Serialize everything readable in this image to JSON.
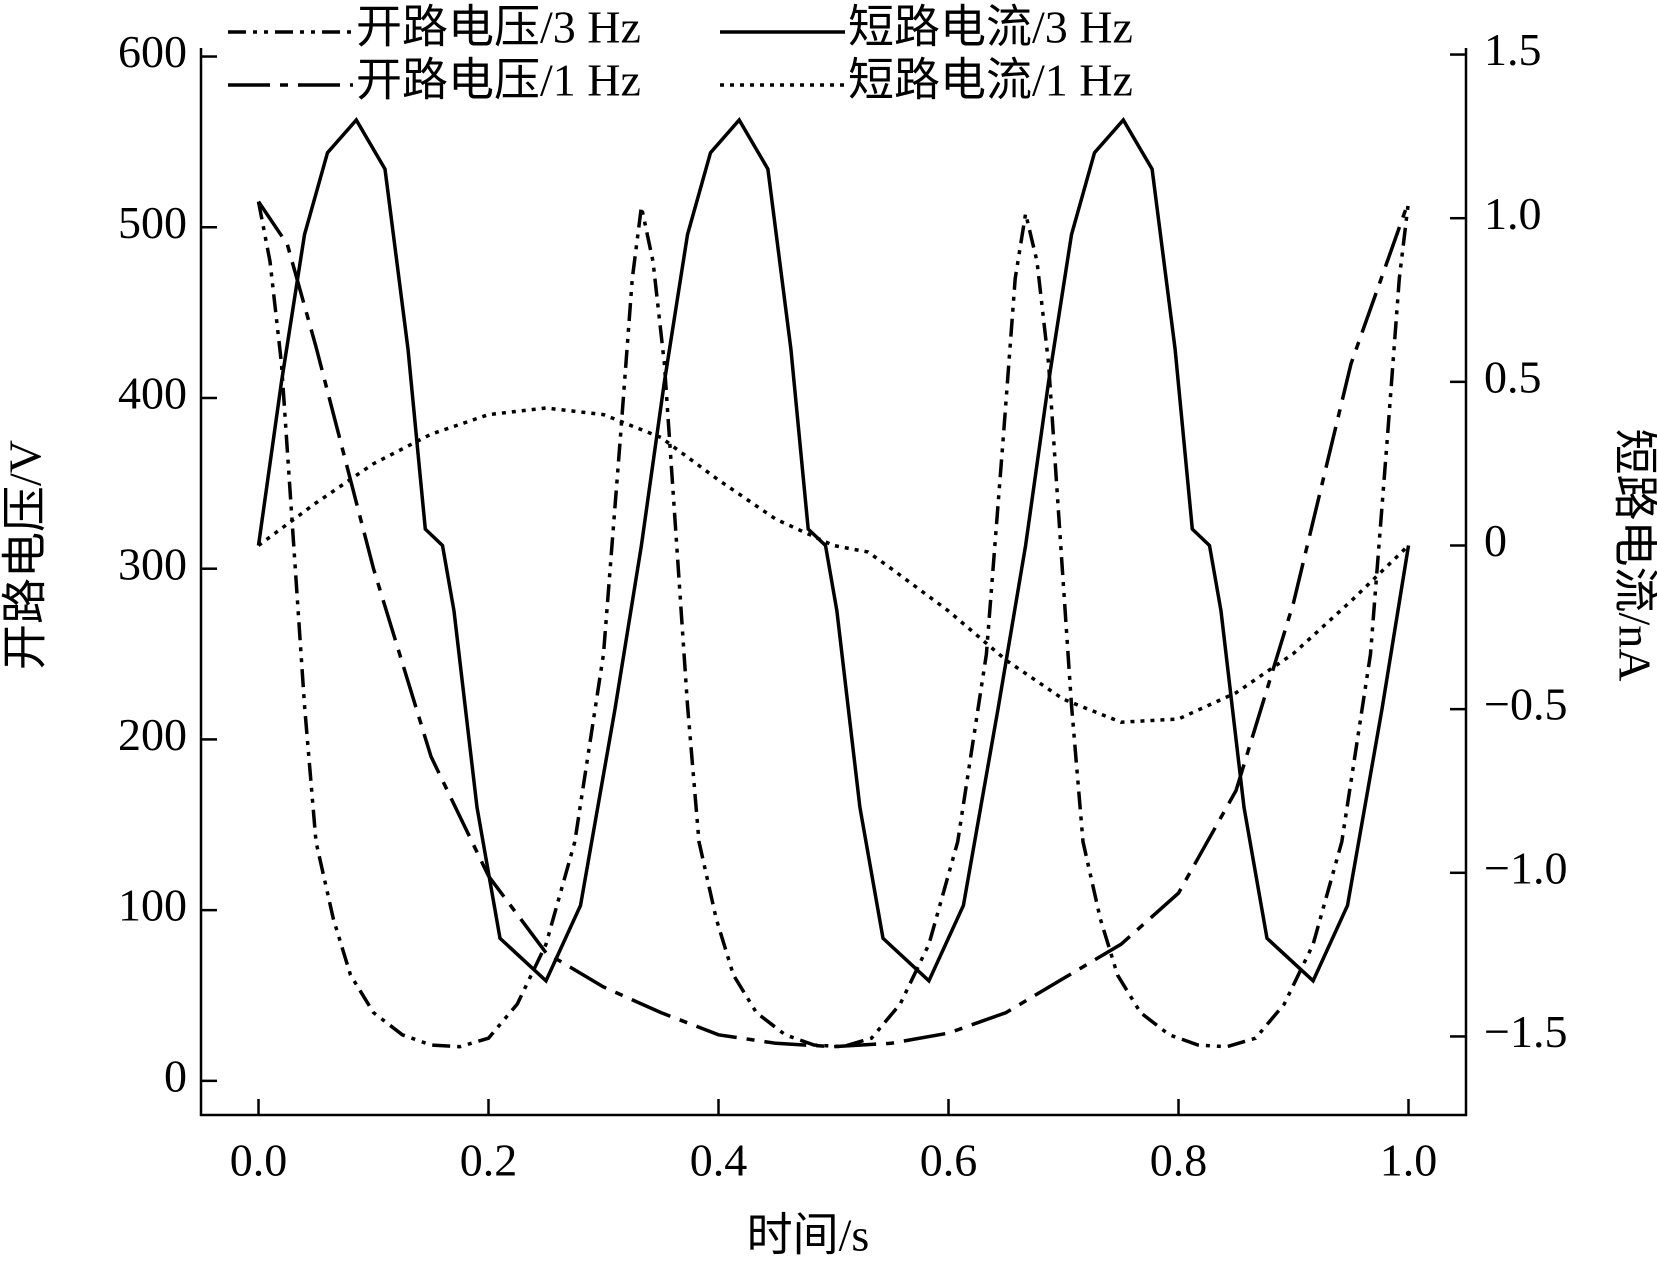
{
  "chart_data": {
    "type": "line",
    "xlabel": "时间/s",
    "ylabel": "开路电压/V",
    "y2label": "短路电流/nA",
    "xlim": [
      -0.05,
      1.05
    ],
    "ylim": [
      -20,
      605
    ],
    "y2lim": [
      -1.74,
      1.52
    ],
    "xticks": [
      {
        "value": 0,
        "label": "0.0"
      },
      {
        "value": 0.2,
        "label": "0.2"
      },
      {
        "value": 0.4,
        "label": "0.4"
      },
      {
        "value": 0.6,
        "label": "0.6"
      },
      {
        "value": 0.8,
        "label": "0.8"
      },
      {
        "value": 1,
        "label": "1.0"
      }
    ],
    "yticks": [
      0,
      100,
      200,
      300,
      400,
      500,
      600
    ],
    "y2ticks": [
      {
        "value": -1.5,
        "label": "−1.5"
      },
      {
        "value": -1,
        "label": "−1.0"
      },
      {
        "value": -0.5,
        "label": "−0.5"
      },
      0,
      {
        "value": 0.5,
        "label": "0.5"
      },
      {
        "value": 1,
        "label": "1.0"
      },
      {
        "value": 1.5,
        "label": "1.5"
      }
    ],
    "series": [
      {
        "name": "开路电压/3 Hz",
        "color": "#000000",
        "linestyle": "dashdotdot",
        "x": [
          0,
          0.01,
          0.02,
          0.03,
          0.04,
          0.05,
          0.065,
          0.08,
          0.1,
          0.125,
          0.15,
          0.175,
          0.2,
          0.225,
          0.25,
          0.275,
          0.3,
          0.315,
          0.325,
          0.333,
          0.343,
          0.353,
          0.363,
          0.373,
          0.383,
          0.398,
          0.413,
          0.433,
          0.458,
          0.483,
          0.508,
          0.533,
          0.558,
          0.583,
          0.608,
          0.633,
          0.648,
          0.658,
          0.667,
          0.677,
          0.687,
          0.697,
          0.707,
          0.717,
          0.732,
          0.747,
          0.767,
          0.792,
          0.817,
          0.842,
          0.867,
          0.892,
          0.917,
          0.942,
          0.967,
          0.982,
          0.992,
          1.0
        ],
        "values": [
          515,
          480,
          420,
          320,
          220,
          140,
          95,
          62,
          40,
          27,
          21,
          20,
          25,
          45,
          80,
          140,
          250,
          380,
          470,
          512,
          480,
          420,
          320,
          220,
          140,
          95,
          62,
          40,
          27,
          21,
          20,
          25,
          45,
          80,
          140,
          250,
          380,
          470,
          508,
          480,
          420,
          320,
          220,
          140,
          95,
          62,
          40,
          27,
          21,
          20,
          25,
          45,
          80,
          140,
          250,
          380,
          470,
          515
        ]
      },
      {
        "name": "短路电流/3 Hz",
        "color": "#000000",
        "linestyle": "solid",
        "axis": "y2",
        "x": [
          0,
          0.02,
          0.04,
          0.06,
          0.085,
          0.11,
          0.13,
          0.145,
          0.16,
          0.17,
          0.19,
          0.21,
          0.25,
          0.28,
          0.31,
          0.333,
          0.353,
          0.373,
          0.393,
          0.418,
          0.443,
          0.463,
          0.478,
          0.493,
          0.503,
          0.523,
          0.543,
          0.583,
          0.613,
          0.643,
          0.667,
          0.687,
          0.707,
          0.727,
          0.752,
          0.777,
          0.797,
          0.812,
          0.827,
          0.837,
          0.857,
          0.877,
          0.917,
          0.947,
          0.977,
          1.0
        ],
        "values": [
          0,
          0.5,
          0.95,
          1.2,
          1.3,
          1.15,
          0.6,
          0.05,
          0,
          -0.2,
          -0.8,
          -1.2,
          -1.33,
          -1.1,
          -0.5,
          0,
          0.5,
          0.95,
          1.2,
          1.3,
          1.15,
          0.6,
          0.05,
          0,
          -0.2,
          -0.8,
          -1.2,
          -1.33,
          -1.1,
          -0.5,
          0,
          0.5,
          0.95,
          1.2,
          1.3,
          1.15,
          0.6,
          0.05,
          0,
          -0.2,
          -0.8,
          -1.2,
          -1.33,
          -1.1,
          -0.5,
          0
        ]
      },
      {
        "name": "开路电压/1 Hz",
        "color": "#000000",
        "linestyle": "dashdot",
        "x": [
          0,
          0.025,
          0.05,
          0.1,
          0.15,
          0.2,
          0.25,
          0.3,
          0.35,
          0.4,
          0.45,
          0.5,
          0.55,
          0.6,
          0.65,
          0.7,
          0.75,
          0.8,
          0.85,
          0.9,
          0.95,
          1.0
        ],
        "values": [
          515,
          490,
          430,
          300,
          190,
          120,
          75,
          55,
          40,
          27,
          22,
          20,
          22,
          28,
          40,
          60,
          80,
          110,
          170,
          280,
          420,
          515
        ]
      },
      {
        "name": "短路电流/1 Hz",
        "color": "#000000",
        "linestyle": "dotted",
        "axis": "y2",
        "x": [
          0,
          0.05,
          0.1,
          0.15,
          0.2,
          0.25,
          0.3,
          0.35,
          0.4,
          0.45,
          0.5,
          0.53,
          0.55,
          0.6,
          0.65,
          0.7,
          0.75,
          0.8,
          0.85,
          0.9,
          0.95,
          1.0
        ],
        "values": [
          0,
          0.13,
          0.25,
          0.34,
          0.4,
          0.42,
          0.4,
          0.33,
          0.2,
          0.08,
          0,
          -0.02,
          -0.07,
          -0.2,
          -0.35,
          -0.47,
          -0.54,
          -0.53,
          -0.45,
          -0.33,
          -0.17,
          0
        ]
      }
    ]
  }
}
